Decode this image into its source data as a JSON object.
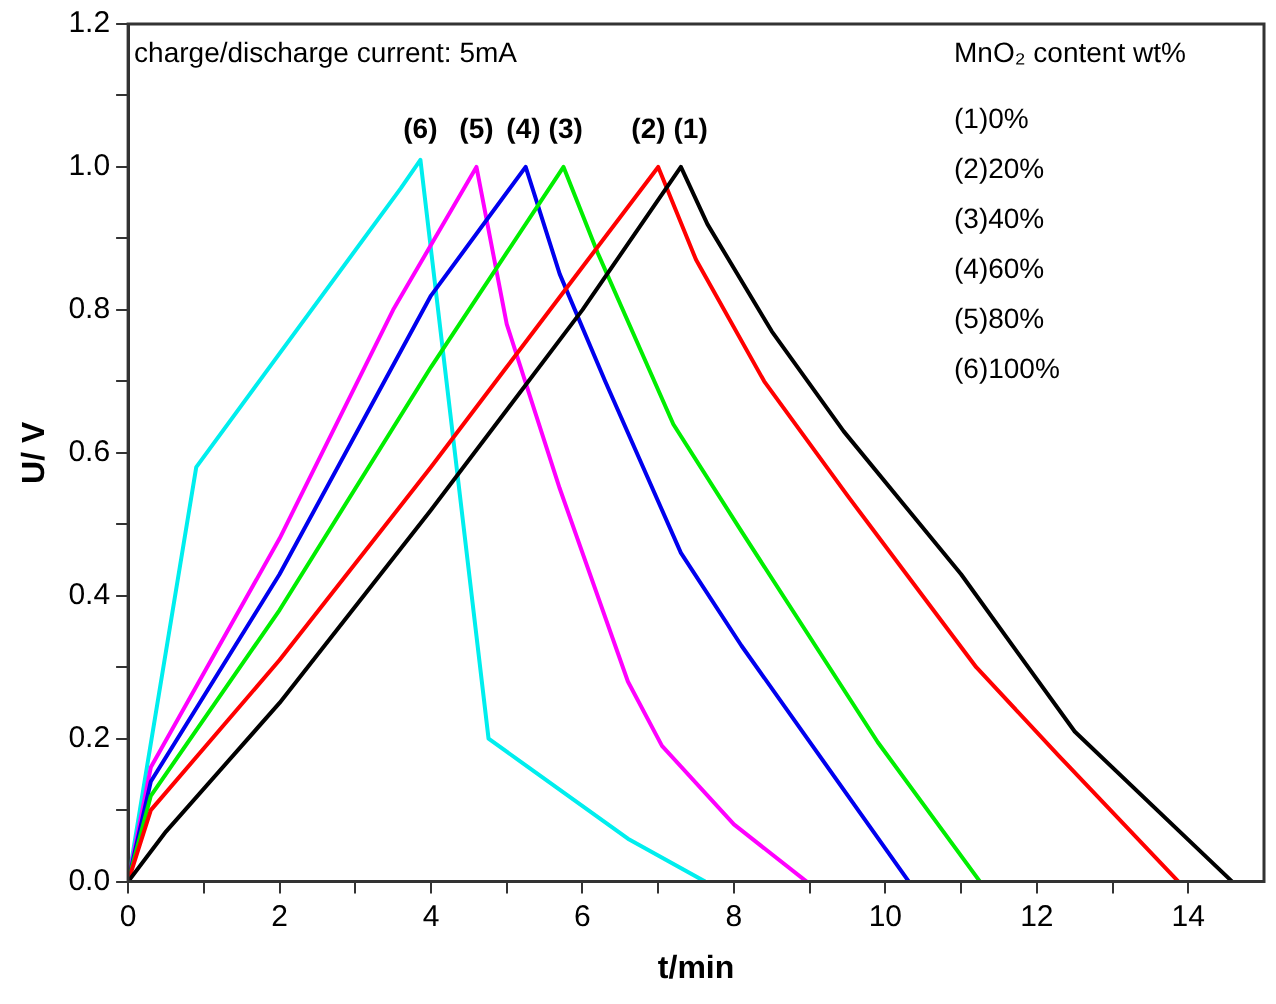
{
  "chart_data": {
    "type": "line",
    "xlabel": "t/min",
    "ylabel": "U/ V",
    "xlim": [
      0,
      15
    ],
    "ylim": [
      0,
      1.2
    ],
    "xticks": [
      0,
      {
        "value": 1,
        "label": null
      },
      2,
      {
        "value": 3,
        "label": null
      },
      4,
      {
        "value": 5,
        "label": null
      },
      6,
      {
        "value": 7,
        "label": null
      },
      8,
      {
        "value": 9,
        "label": null
      },
      10,
      {
        "value": 11,
        "label": null
      },
      12,
      {
        "value": 13,
        "label": null
      },
      14
    ],
    "yticks": [
      {
        "value": 0,
        "label": "0.0"
      },
      {
        "value": 0.1,
        "label": null
      },
      0.2,
      {
        "value": 0.3,
        "label": null
      },
      0.4,
      {
        "value": 0.5,
        "label": null
      },
      0.6,
      {
        "value": 0.7,
        "label": null
      },
      0.8,
      {
        "value": 0.9,
        "label": null
      },
      {
        "value": 1,
        "label": "1.0"
      },
      {
        "value": 1.1,
        "label": null
      },
      1.2
    ],
    "grid": false,
    "legend": false,
    "marker": "none",
    "line_style": "solid",
    "annotations": [
      "charge/discharge current: 5mA",
      "MnO₂ content wt%",
      "(1)0%",
      "(2)20%",
      "(3)40%",
      "(4)60%",
      "(5)80%",
      "(6)100%"
    ],
    "series": [
      {
        "name": "(1)",
        "color": "#000000",
        "x": [
          0,
          0.5,
          2,
          4,
          5,
          6,
          7.3,
          7.65,
          8.5,
          9.45,
          11,
          12.5,
          14.58
        ],
        "values": [
          0,
          0.07,
          0.25,
          0.52,
          0.66,
          0.8,
          1.0,
          0.92,
          0.77,
          0.63,
          0.43,
          0.21,
          0
        ]
      },
      {
        "name": "(2)",
        "color": "#ff0000",
        "x": [
          0,
          0.3,
          2,
          4,
          5,
          6,
          7,
          7.5,
          8.4,
          9.5,
          11.2,
          12.3,
          13.87
        ],
        "values": [
          0,
          0.1,
          0.31,
          0.58,
          0.72,
          0.86,
          1.0,
          0.87,
          0.7,
          0.54,
          0.3,
          0.175,
          0
        ]
      },
      {
        "name": "(3)",
        "color": "#00ee00",
        "x": [
          0,
          0.3,
          2,
          4,
          5,
          5.75,
          6.2,
          7.2,
          8.1,
          9.9,
          11.25
        ],
        "values": [
          0,
          0.12,
          0.38,
          0.72,
          0.88,
          1.0,
          0.88,
          0.64,
          0.49,
          0.195,
          0
        ]
      },
      {
        "name": "(4)",
        "color": "#0000ee",
        "x": [
          0,
          0.3,
          2,
          4,
          5.25,
          5.7,
          6.3,
          7.3,
          8.1,
          10.31
        ],
        "values": [
          0,
          0.14,
          0.43,
          0.82,
          1.0,
          0.85,
          0.7,
          0.46,
          0.33,
          0
        ]
      },
      {
        "name": "(5)",
        "color": "#ff00ff",
        "x": [
          0,
          0.3,
          2,
          3.5,
          4.6,
          5,
          5.7,
          6.6,
          7.05,
          8,
          8.96
        ],
        "values": [
          0,
          0.16,
          0.48,
          0.8,
          1.0,
          0.78,
          0.55,
          0.28,
          0.19,
          0.08,
          0
        ]
      },
      {
        "name": "(6)",
        "color": "#00eeee",
        "x": [
          0,
          0.9,
          1.8,
          3.6,
          3.86,
          4.76,
          6.6,
          7.62
        ],
        "values": [
          0,
          0.58,
          0.71,
          0.97,
          1.01,
          0.2,
          0.06,
          0
        ]
      }
    ]
  }
}
